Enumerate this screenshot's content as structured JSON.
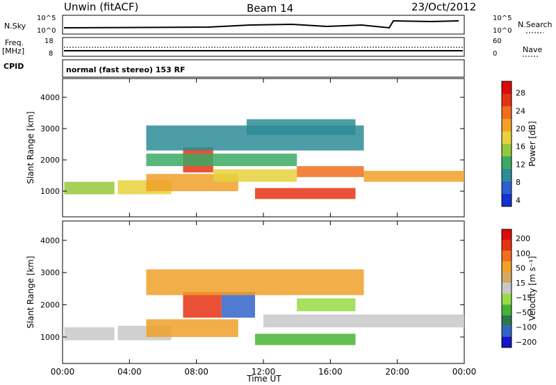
{
  "header": {
    "station": "Unwin (fitACF)",
    "beam": "Beam 14",
    "date": "23/Oct/2012"
  },
  "top_panels": {
    "nsky_label": "N.Sky",
    "nsky_ticks": [
      "10^5",
      "10^0"
    ],
    "nsearch_label": "N.Search",
    "nsearch_ticks": [
      "10^5",
      "10^0"
    ],
    "freq_label": "Freq.",
    "freq_unit": "[MHz]",
    "freq_ticks": [
      "18",
      "8"
    ],
    "nave_label": "Nave",
    "nave_ticks": [
      "60",
      "0"
    ],
    "cpid_label": "CPID",
    "cpid_value": "normal (fast stereo) 153 RF"
  },
  "colors": {
    "power_scale": [
      "#1432d2",
      "#2d5fd2",
      "#2d8c96",
      "#3caa64",
      "#96c83c",
      "#e6d23c",
      "#f0a028",
      "#f06e1e",
      "#e63214",
      "#dc0a0a"
    ],
    "velocity_scale": [
      "#1414c8",
      "#3264c8",
      "#287850",
      "#46b432",
      "#96dc46",
      "#c8c8c8",
      "#d2aa64",
      "#f0a028",
      "#f06e1e",
      "#e63214",
      "#dc0a0a"
    ]
  },
  "chart_data": [
    {
      "type": "heatmap",
      "name_panel": "power",
      "title": "",
      "xlabel": "Time UT",
      "ylabel": "Slant Range [km]",
      "x_ticks": [
        "00:00",
        "04:00",
        "08:00",
        "12:00",
        "16:00",
        "20:00",
        "00:00"
      ],
      "y_ticks": [
        "1000",
        "2000",
        "3000",
        "4000"
      ],
      "xlim_hours": [
        0,
        24
      ],
      "ylim_km": [
        180,
        4600
      ],
      "colorbar_label": "Power [dB]",
      "colorbar_ticks": [
        "28",
        "24",
        "20",
        "16",
        "12",
        "8",
        "4"
      ],
      "bands": [
        {
          "t0": 0.1,
          "t1": 3.1,
          "r0": 900,
          "r1": 1300,
          "level": 0.45
        },
        {
          "t0": 3.3,
          "t1": 6.5,
          "r0": 900,
          "r1": 1350,
          "level": 0.55
        },
        {
          "t0": 5.0,
          "t1": 10.5,
          "r0": 1000,
          "r1": 1550,
          "level": 0.65
        },
        {
          "t0": 7.2,
          "t1": 9.0,
          "r0": 1600,
          "r1": 2400,
          "level": 0.85
        },
        {
          "t0": 9.0,
          "t1": 14.0,
          "r0": 1300,
          "r1": 1700,
          "level": 0.6
        },
        {
          "t0": 11.5,
          "t1": 17.5,
          "r0": 750,
          "r1": 1100,
          "level": 0.9
        },
        {
          "t0": 14.0,
          "t1": 18.0,
          "r0": 1450,
          "r1": 1800,
          "level": 0.75
        },
        {
          "t0": 18.0,
          "t1": 24.0,
          "r0": 1300,
          "r1": 1650,
          "level": 0.7
        },
        {
          "t0": 5.0,
          "t1": 14.0,
          "r0": 1800,
          "r1": 2200,
          "level": 0.3
        },
        {
          "t0": 5.0,
          "t1": 18.0,
          "r0": 2300,
          "r1": 3100,
          "level": 0.2
        },
        {
          "t0": 11.0,
          "t1": 17.5,
          "r0": 2800,
          "r1": 3300,
          "level": 0.25
        }
      ]
    },
    {
      "type": "heatmap",
      "name_panel": "velocity",
      "title": "",
      "xlabel": "Time UT",
      "ylabel": "Slant Range [km]",
      "x_ticks": [
        "00:00",
        "04:00",
        "08:00",
        "12:00",
        "16:00",
        "20:00",
        "00:00"
      ],
      "y_ticks": [
        "1000",
        "2000",
        "3000",
        "4000"
      ],
      "xlim_hours": [
        0,
        24
      ],
      "ylim_km": [
        180,
        4600
      ],
      "colorbar_label": "Velocity [m s⁻¹]",
      "colorbar_ticks": [
        "200",
        "100",
        "50",
        "15",
        "−15",
        "−50",
        "−100",
        "−200"
      ],
      "bands": [
        {
          "t0": 0.1,
          "t1": 3.1,
          "r0": 900,
          "r1": 1300,
          "level": 0.5
        },
        {
          "t0": 3.3,
          "t1": 6.5,
          "r0": 900,
          "r1": 1350,
          "level": 0.5
        },
        {
          "t0": 5.0,
          "t1": 10.5,
          "r0": 1000,
          "r1": 1550,
          "level": 0.7
        },
        {
          "t0": 7.2,
          "t1": 9.5,
          "r0": 1600,
          "r1": 2400,
          "level": 0.85
        },
        {
          "t0": 9.5,
          "t1": 11.5,
          "r0": 1600,
          "r1": 2400,
          "level": 0.1
        },
        {
          "t0": 11.5,
          "t1": 17.5,
          "r0": 750,
          "r1": 1100,
          "level": 0.3
        },
        {
          "t0": 12.0,
          "t1": 24.0,
          "r0": 1300,
          "r1": 1700,
          "level": 0.5
        },
        {
          "t0": 5.0,
          "t1": 18.0,
          "r0": 2300,
          "r1": 3100,
          "level": 0.65
        },
        {
          "t0": 14.0,
          "t1": 17.5,
          "r0": 1800,
          "r1": 2200,
          "level": 0.35
        }
      ]
    }
  ]
}
